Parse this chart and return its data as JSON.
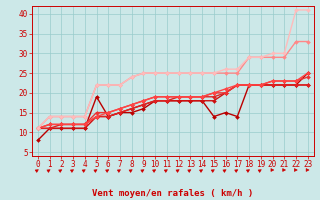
{
  "background_color": "#cce8e8",
  "grid_color": "#99cccc",
  "xlabel": "Vent moyen/en rafales ( km/h )",
  "xlim": [
    -0.5,
    23.5
  ],
  "ylim": [
    4,
    42
  ],
  "yticks": [
    5,
    10,
    15,
    20,
    25,
    30,
    35,
    40
  ],
  "xticks": [
    0,
    1,
    2,
    3,
    4,
    5,
    6,
    7,
    8,
    9,
    10,
    11,
    12,
    13,
    14,
    15,
    16,
    17,
    18,
    19,
    20,
    21,
    22,
    23
  ],
  "lines": [
    {
      "x": [
        0,
        1,
        2,
        3,
        4,
        5,
        6,
        7,
        8,
        9,
        10,
        11,
        12,
        13,
        14,
        15,
        16,
        17,
        18,
        19,
        20,
        21,
        22,
        23
      ],
      "y": [
        8,
        11,
        11,
        11,
        11,
        19,
        14,
        15,
        15,
        16,
        18,
        18,
        18,
        18,
        18,
        14,
        15,
        14,
        22,
        22,
        22,
        22,
        22,
        25
      ],
      "color": "#bb0000",
      "lw": 1.0,
      "marker": "D",
      "ms": 2.0
    },
    {
      "x": [
        0,
        1,
        2,
        3,
        4,
        5,
        6,
        7,
        8,
        9,
        10,
        11,
        12,
        13,
        14,
        15,
        16,
        17,
        18,
        19,
        20,
        21,
        22,
        23
      ],
      "y": [
        11,
        11,
        11,
        11,
        11,
        14,
        14,
        15,
        16,
        17,
        18,
        18,
        18,
        18,
        18,
        18,
        20,
        22,
        22,
        22,
        22,
        22,
        22,
        22
      ],
      "color": "#cc1111",
      "lw": 1.0,
      "marker": "D",
      "ms": 2.0
    },
    {
      "x": [
        0,
        1,
        2,
        3,
        4,
        5,
        6,
        7,
        8,
        9,
        10,
        11,
        12,
        13,
        14,
        15,
        16,
        17,
        18,
        19,
        20,
        21,
        22,
        23
      ],
      "y": [
        11,
        11,
        12,
        12,
        12,
        14,
        14,
        15,
        16,
        17,
        18,
        18,
        19,
        19,
        19,
        19,
        20,
        22,
        22,
        22,
        22,
        22,
        22,
        22
      ],
      "color": "#dd2222",
      "lw": 1.0,
      "marker": "D",
      "ms": 2.0
    },
    {
      "x": [
        0,
        1,
        2,
        3,
        4,
        5,
        6,
        7,
        8,
        9,
        10,
        11,
        12,
        13,
        14,
        15,
        16,
        17,
        18,
        19,
        20,
        21,
        22,
        23
      ],
      "y": [
        11,
        12,
        12,
        12,
        12,
        15,
        15,
        16,
        17,
        18,
        19,
        19,
        19,
        19,
        19,
        20,
        20,
        22,
        22,
        22,
        23,
        23,
        23,
        24
      ],
      "color": "#ee3333",
      "lw": 1.0,
      "marker": "D",
      "ms": 2.0
    },
    {
      "x": [
        0,
        1,
        2,
        3,
        4,
        5,
        6,
        7,
        8,
        9,
        10,
        11,
        12,
        13,
        14,
        15,
        16,
        17,
        18,
        19,
        20,
        21,
        22,
        23
      ],
      "y": [
        11,
        12,
        12,
        12,
        12,
        14,
        15,
        16,
        17,
        18,
        19,
        19,
        19,
        19,
        19,
        20,
        21,
        22,
        22,
        22,
        23,
        23,
        23,
        25
      ],
      "color": "#ff4444",
      "lw": 1.0,
      "marker": "D",
      "ms": 2.0
    },
    {
      "x": [
        0,
        1,
        2,
        3,
        4,
        5,
        6,
        7,
        8,
        9,
        10,
        11,
        12,
        13,
        14,
        15,
        16,
        17,
        18,
        19,
        20,
        21,
        22,
        23
      ],
      "y": [
        11,
        14,
        14,
        14,
        14,
        22,
        22,
        22,
        24,
        25,
        25,
        25,
        25,
        25,
        25,
        25,
        25,
        25,
        29,
        29,
        29,
        29,
        33,
        33
      ],
      "color": "#ff8888",
      "lw": 1.0,
      "marker": "D",
      "ms": 2.0
    },
    {
      "x": [
        0,
        1,
        2,
        3,
        4,
        5,
        6,
        7,
        8,
        9,
        10,
        11,
        12,
        13,
        14,
        15,
        16,
        17,
        18,
        19,
        20,
        21,
        22,
        23
      ],
      "y": [
        11,
        14,
        14,
        14,
        14,
        22,
        22,
        22,
        24,
        25,
        25,
        25,
        25,
        25,
        25,
        25,
        26,
        26,
        29,
        29,
        30,
        30,
        41,
        41
      ],
      "color": "#ffbbbb",
      "lw": 1.0,
      "marker": "D",
      "ms": 2.0
    }
  ],
  "arrow_color": "#cc0000",
  "axis_label_color": "#cc0000",
  "tick_color": "#cc0000",
  "tick_fontsize": 5.5,
  "xlabel_fontsize": 6.5,
  "arrow_angles": [
    45,
    45,
    45,
    45,
    45,
    45,
    45,
    45,
    45,
    45,
    45,
    45,
    45,
    45,
    45,
    45,
    45,
    45,
    45,
    45,
    90,
    90,
    90,
    90
  ]
}
